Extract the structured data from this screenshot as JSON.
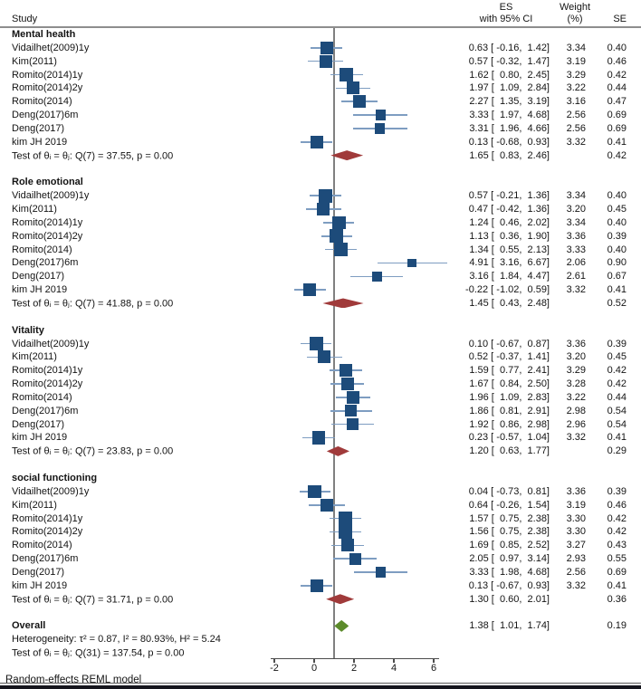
{
  "header": {
    "study": "Study",
    "es_line1": "ES",
    "es_line2": "with 95% CI",
    "weight_line1": "Weight",
    "weight_line2": "(%)",
    "se": "SE"
  },
  "footer": {
    "note": "Random-effects REML model"
  },
  "chart_data": {
    "type": "forest",
    "effect_measure": "ES with 95% CI",
    "axis": {
      "ticks": [
        -2,
        0,
        2,
        4,
        6
      ],
      "range": [
        -2,
        6.8
      ],
      "refline_value": 1
    },
    "colors": {
      "square": "#1d4b7a",
      "ci_line": "#7e9dc1",
      "subgroup_diamond": "#a03a3a",
      "overall_diamond": "#5c8b2b",
      "refline": "#808080",
      "axis": "#4d4d4d"
    },
    "groups": [
      {
        "name": "Mental health",
        "studies": [
          {
            "label": "Vidailhet(2009)1y",
            "es": 0.63,
            "lo": -0.16,
            "hi": 1.42,
            "weight": "3.34",
            "se": "0.40"
          },
          {
            "label": "Kim(2011)",
            "es": 0.57,
            "lo": -0.32,
            "hi": 1.47,
            "weight": "3.19",
            "se": "0.46"
          },
          {
            "label": "Romito(2014)1y",
            "es": 1.62,
            "lo": 0.8,
            "hi": 2.45,
            "weight": "3.29",
            "se": "0.42"
          },
          {
            "label": "Romito(2014)2y",
            "es": 1.97,
            "lo": 1.09,
            "hi": 2.84,
            "weight": "3.22",
            "se": "0.44"
          },
          {
            "label": "Romito(2014)",
            "es": 2.27,
            "lo": 1.35,
            "hi": 3.19,
            "weight": "3.16",
            "se": "0.47"
          },
          {
            "label": "Deng(2017)6m",
            "es": 3.33,
            "lo": 1.97,
            "hi": 4.68,
            "weight": "2.56",
            "se": "0.69"
          },
          {
            "label": "Deng(2017)",
            "es": 3.31,
            "lo": 1.96,
            "hi": 4.66,
            "weight": "2.56",
            "se": "0.69"
          },
          {
            "label": "kim JH 2019",
            "es": 0.13,
            "lo": -0.68,
            "hi": 0.93,
            "weight": "3.32",
            "se": "0.41"
          }
        ],
        "test": {
          "label": "Test of θᵢ = θⱼ: Q(7) = 37.55, p = 0.00",
          "es": 1.65,
          "lo": 0.83,
          "hi": 2.46,
          "se": "0.42"
        }
      },
      {
        "name": "Role emotional",
        "studies": [
          {
            "label": "Vidailhet(2009)1y",
            "es": 0.57,
            "lo": -0.21,
            "hi": 1.36,
            "weight": "3.34",
            "se": "0.40"
          },
          {
            "label": "Kim(2011)",
            "es": 0.47,
            "lo": -0.42,
            "hi": 1.36,
            "weight": "3.20",
            "se": "0.45"
          },
          {
            "label": "Romito(2014)1y",
            "es": 1.24,
            "lo": 0.46,
            "hi": 2.02,
            "weight": "3.34",
            "se": "0.40"
          },
          {
            "label": "Romito(2014)2y",
            "es": 1.13,
            "lo": 0.36,
            "hi": 1.9,
            "weight": "3.36",
            "se": "0.39"
          },
          {
            "label": "Romito(2014)",
            "es": 1.34,
            "lo": 0.55,
            "hi": 2.13,
            "weight": "3.33",
            "se": "0.40"
          },
          {
            "label": "Deng(2017)6m",
            "es": 4.91,
            "lo": 3.16,
            "hi": 6.67,
            "weight": "2.06",
            "se": "0.90"
          },
          {
            "label": "Deng(2017)",
            "es": 3.16,
            "lo": 1.84,
            "hi": 4.47,
            "weight": "2.61",
            "se": "0.67"
          },
          {
            "label": "kim JH 2019",
            "es": -0.22,
            "lo": -1.02,
            "hi": 0.59,
            "weight": "3.32",
            "se": "0.41"
          }
        ],
        "test": {
          "label": "Test of θᵢ = θⱼ: Q(7) = 41.88, p = 0.00",
          "es": 1.45,
          "lo": 0.43,
          "hi": 2.48,
          "se": "0.52"
        }
      },
      {
        "name": "Vitality",
        "studies": [
          {
            "label": "Vidailhet(2009)1y",
            "es": 0.1,
            "lo": -0.67,
            "hi": 0.87,
            "weight": "3.36",
            "se": "0.39"
          },
          {
            "label": "Kim(2011)",
            "es": 0.52,
            "lo": -0.37,
            "hi": 1.41,
            "weight": "3.20",
            "se": "0.45"
          },
          {
            "label": "Romito(2014)1y",
            "es": 1.59,
            "lo": 0.77,
            "hi": 2.41,
            "weight": "3.29",
            "se": "0.42"
          },
          {
            "label": "Romito(2014)2y",
            "es": 1.67,
            "lo": 0.84,
            "hi": 2.5,
            "weight": "3.28",
            "se": "0.42"
          },
          {
            "label": "Romito(2014)",
            "es": 1.96,
            "lo": 1.09,
            "hi": 2.83,
            "weight": "3.22",
            "se": "0.44"
          },
          {
            "label": "Deng(2017)6m",
            "es": 1.86,
            "lo": 0.81,
            "hi": 2.91,
            "weight": "2.98",
            "se": "0.54"
          },
          {
            "label": "Deng(2017)",
            "es": 1.92,
            "lo": 0.86,
            "hi": 2.98,
            "weight": "2.96",
            "se": "0.54"
          },
          {
            "label": "kim JH 2019",
            "es": 0.23,
            "lo": -0.57,
            "hi": 1.04,
            "weight": "3.32",
            "se": "0.41"
          }
        ],
        "test": {
          "label": "Test of θᵢ = θⱼ: Q(7) = 23.83, p = 0.00",
          "es": 1.2,
          "lo": 0.63,
          "hi": 1.77,
          "se": "0.29"
        }
      },
      {
        "name": "social functioning",
        "studies": [
          {
            "label": "Vidailhet(2009)1y",
            "es": 0.04,
            "lo": -0.73,
            "hi": 0.81,
            "weight": "3.36",
            "se": "0.39"
          },
          {
            "label": "Kim(2011)",
            "es": 0.64,
            "lo": -0.26,
            "hi": 1.54,
            "weight": "3.19",
            "se": "0.46"
          },
          {
            "label": "Romito(2014)1y",
            "es": 1.57,
            "lo": 0.75,
            "hi": 2.38,
            "weight": "3.30",
            "se": "0.42"
          },
          {
            "label": "Romito(2014)2y",
            "es": 1.56,
            "lo": 0.75,
            "hi": 2.38,
            "weight": "3.30",
            "se": "0.42"
          },
          {
            "label": "Romito(2014)",
            "es": 1.69,
            "lo": 0.85,
            "hi": 2.52,
            "weight": "3.27",
            "se": "0.43"
          },
          {
            "label": "Deng(2017)6m",
            "es": 2.05,
            "lo": 0.97,
            "hi": 3.14,
            "weight": "2.93",
            "se": "0.55"
          },
          {
            "label": "Deng(2017)",
            "es": 3.33,
            "lo": 1.98,
            "hi": 4.68,
            "weight": "2.56",
            "se": "0.69"
          },
          {
            "label": "kim JH 2019",
            "es": 0.13,
            "lo": -0.67,
            "hi": 0.93,
            "weight": "3.32",
            "se": "0.41"
          }
        ],
        "test": {
          "label": "Test of θᵢ = θⱼ: Q(7) = 31.71, p = 0.00",
          "es": 1.3,
          "lo": 0.6,
          "hi": 2.01,
          "se": "0.36"
        }
      }
    ],
    "overall": {
      "label": "Overall",
      "es": 1.38,
      "lo": 1.01,
      "hi": 1.74,
      "se": "0.19",
      "heterogeneity": "Heterogeneity: τ² = 0.87, I² = 80.93%, H² = 5.24",
      "test": "Test of θᵢ = θⱼ: Q(31) = 137.54, p = 0.00"
    }
  }
}
